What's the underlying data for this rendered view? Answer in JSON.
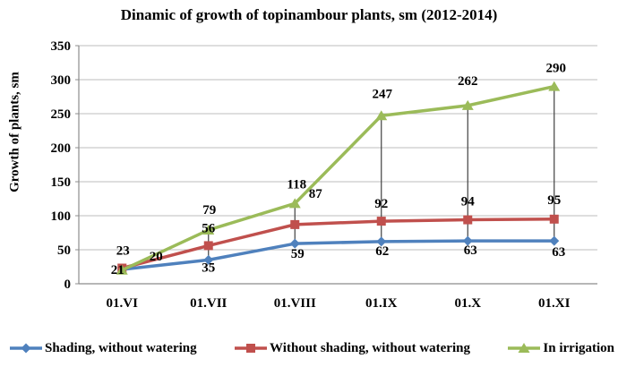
{
  "chart_data": {
    "type": "line",
    "title": "Dinamic of growth of topinambour plants, sm (2012-2014)",
    "ylabel": "Growth of plants, sm",
    "xlabel": "",
    "categories": [
      "01.VI",
      "01.VII",
      "01.VIII",
      "01.IX",
      "01.X",
      "01.XI"
    ],
    "series": [
      {
        "name": "Shading, without watering",
        "color": "#4F81BD",
        "marker": "diamond",
        "values": [
          21,
          35,
          59,
          62,
          63,
          63
        ]
      },
      {
        "name": "Without shading, without watering",
        "color": "#C0504D",
        "marker": "square",
        "values": [
          23,
          56,
          87,
          92,
          94,
          95
        ]
      },
      {
        "name": "In irrigation",
        "color": "#9BBB59",
        "marker": "triangle",
        "values": [
          20,
          79,
          118,
          247,
          262,
          290
        ]
      }
    ],
    "ylim": [
      0,
      350
    ],
    "y_tick_step": 50,
    "y_ticks": [
      0,
      50,
      100,
      150,
      200,
      250,
      300,
      350
    ],
    "grid": true,
    "data_labels": true,
    "high_low_lines": true,
    "legend_position": "bottom"
  },
  "colors": {
    "background": "#FFFFFF",
    "gridline": "#BDBDBD",
    "axis": "#8C8C8C",
    "high_low_line": "#404040",
    "text": "#000000"
  }
}
